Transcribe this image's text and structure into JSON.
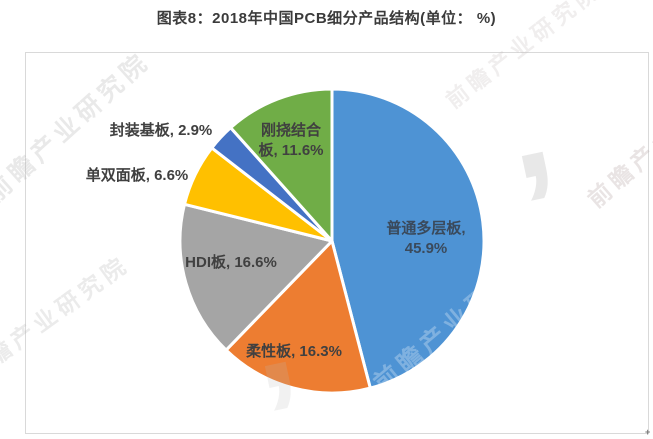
{
  "chart_data": {
    "type": "pie",
    "title": "图表8：2018年中国PCB细分产品结构(单位： %)",
    "unit": "%",
    "start_angle_deg": 0,
    "direction": "clockwise",
    "legend": "none",
    "slices": [
      {
        "key": "multilayer",
        "name": "普通多层板",
        "value": 45.9,
        "color": "#4E93D4",
        "label_lines": [
          "普通多层板,",
          "45.9%"
        ],
        "label_position": "inside"
      },
      {
        "key": "flexible",
        "name": "柔性板",
        "value": 16.3,
        "color": "#ED7D31",
        "label_lines": [
          "柔性板, 16.3%"
        ],
        "label_position": "inside"
      },
      {
        "key": "hdi",
        "name": "HDI板",
        "value": 16.6,
        "color": "#A5A5A5",
        "label_lines": [
          "HDI板, 16.6%"
        ],
        "label_position": "inside"
      },
      {
        "key": "singledouble",
        "name": "单双面板",
        "value": 6.6,
        "color": "#FFC000",
        "label_lines": [
          "单双面板, 6.6%"
        ],
        "label_position": "outside"
      },
      {
        "key": "substrate",
        "name": "封装基板",
        "value": 2.9,
        "color": "#4472C4",
        "label_lines": [
          "封装基板, 2.9%"
        ],
        "label_position": "outside"
      },
      {
        "key": "rigidflex",
        "name": "刚挠结合板",
        "value": 11.6,
        "color": "#70AD47",
        "label_lines": [
          "刚挠结合",
          "板, 11.6%"
        ],
        "label_position": "inside"
      }
    ],
    "slice_border_color": "#ffffff"
  },
  "watermark": {
    "text": "前瞻产业研究院",
    "logo_glyph": ","
  },
  "frame": {
    "border_color": "#d9d9d9"
  }
}
